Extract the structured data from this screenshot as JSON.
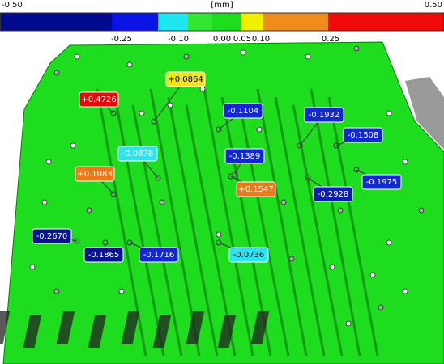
{
  "colorbar": {
    "min_label": "-0.50",
    "unit": "[mm]",
    "max_label": "0.50",
    "ticks": [
      "-0.25",
      "-0.10",
      "0.00",
      "0.05",
      "0.10",
      "0.25"
    ],
    "colors": [
      "#000a8c",
      "#0a14e6",
      "#1ee6f0",
      "#32e632",
      "#1edc1e",
      "#f0f000",
      "#f08c1e",
      "#f00a0a"
    ]
  },
  "callouts": [
    {
      "text": "+0.4726",
      "color": "#e60a0a"
    },
    {
      "text": "+0.0864",
      "color": "#f0e614"
    },
    {
      "text": "-0.1104",
      "color": "#1428d2"
    },
    {
      "text": "-0.1932",
      "color": "#1428d2"
    },
    {
      "text": "-0.1508",
      "color": "#1428d2"
    },
    {
      "text": "-0.0878",
      "color": "#28e6f0"
    },
    {
      "text": "-0.1389",
      "color": "#1428d2"
    },
    {
      "text": "+0.1083",
      "color": "#f07814"
    },
    {
      "text": "+0.1547",
      "color": "#f07814"
    },
    {
      "text": "-0.2928",
      "color": "#0a1eb4"
    },
    {
      "text": "-0.1975",
      "color": "#1428d2"
    },
    {
      "text": "-0.2670",
      "color": "#0a148c"
    },
    {
      "text": "-0.1865",
      "color": "#0a148c"
    },
    {
      "text": "-0.1716",
      "color": "#1428d2"
    },
    {
      "text": "-0.0736",
      "color": "#28e6f0"
    }
  ]
}
